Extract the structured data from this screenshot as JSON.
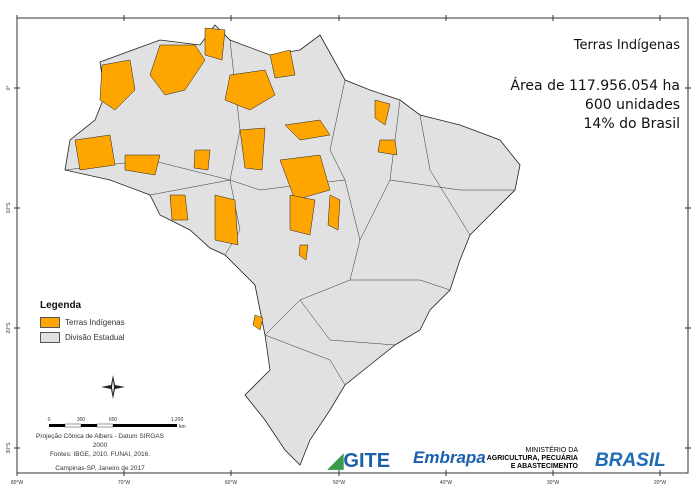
{
  "title": {
    "heading": "Terras Indígenas",
    "area": "Área de 117.956.054 ha",
    "units": "600 unidades",
    "share": "14% do Brasil"
  },
  "legend": {
    "title": "Legenda",
    "items": [
      {
        "label": "Terras Indígenas",
        "color": "#FFA500"
      },
      {
        "label": "Divisão Estadual",
        "color": "#E1E1E1"
      }
    ]
  },
  "axes": {
    "lat": [
      "0°",
      "10°S",
      "20°S",
      "30°S"
    ],
    "lon": [
      "80°W",
      "70°W",
      "60°W",
      "50°W",
      "40°W",
      "30°W",
      "20°W"
    ]
  },
  "scale": {
    "ticks": [
      "0",
      "300",
      "600",
      "1.200"
    ],
    "unit": "km"
  },
  "credits": {
    "projection": "Projeção Cônica de Albers - Datum SIRGAS 2000",
    "sources": "Fontes: IBGE, 2010. FUNAI, 2016.",
    "place_date": "Campinas-SP, Janeiro de 2017"
  },
  "logos": {
    "gite": "GITE",
    "embrapa": "Embrapa",
    "ministry": [
      "MINISTÉRIO DA",
      "AGRICULTURA, PECUÁRIA",
      "E ABASTECIMENTO"
    ],
    "brasil": "BRASIL"
  },
  "compass": [
    "N",
    "S",
    "E",
    "W"
  ]
}
